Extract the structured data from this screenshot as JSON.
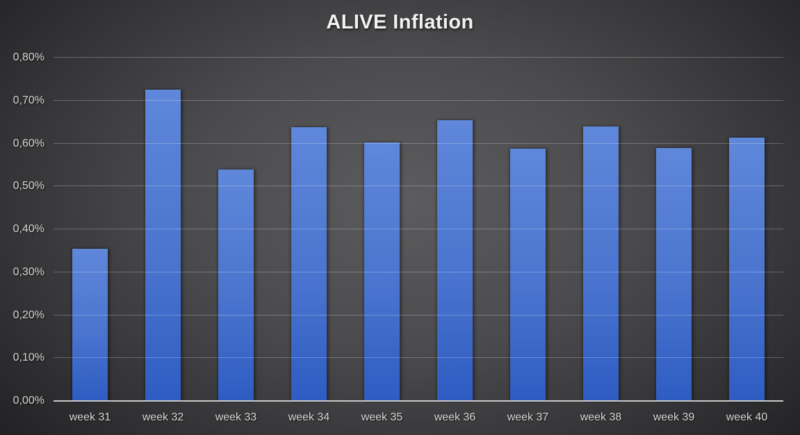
{
  "chart_data": {
    "type": "bar",
    "title": "ALIVE Inflation",
    "categories": [
      "week 31",
      "week 32",
      "week 33",
      "week 34",
      "week 35",
      "week 36",
      "week 37",
      "week 38",
      "week 39",
      "week 40"
    ],
    "values": [
      0.355,
      0.725,
      0.54,
      0.638,
      0.603,
      0.654,
      0.588,
      0.639,
      0.59,
      0.614
    ],
    "unit": "%",
    "decimal_separator": ",",
    "ylim": [
      0,
      0.8
    ],
    "ytick_step": 0.1,
    "ytick_labels": [
      "0,00%",
      "0,10%",
      "0,20%",
      "0,30%",
      "0,40%",
      "0,50%",
      "0,60%",
      "0,70%",
      "0,80%"
    ],
    "grid": true,
    "legend_position": "none",
    "xlabel": "",
    "ylabel": ""
  },
  "colors": {
    "background_center": "#5c5c5e",
    "background_edge": "#1f1f21",
    "bar_top": "#5f87da",
    "bar_bottom": "#2e5cc2",
    "gridline": "rgba(255,255,255,0.25)",
    "axis_line": "#c9c9c9",
    "tick_text": "#d6d6d6",
    "title_text": "#f1f1f1"
  }
}
